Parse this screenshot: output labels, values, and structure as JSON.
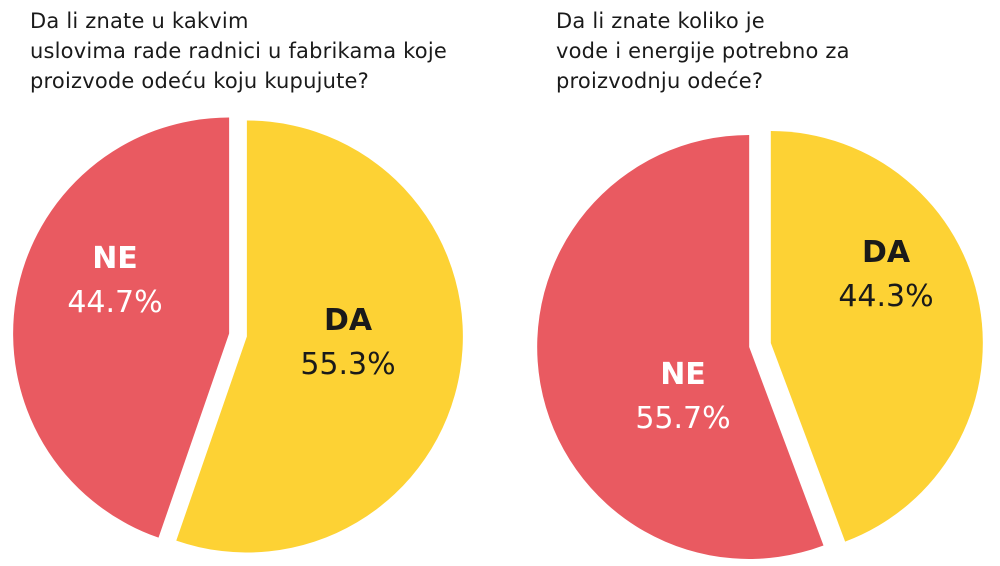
{
  "colors": {
    "DA": "#fdd234",
    "NE": "#e95a61"
  },
  "chart_data": [
    {
      "type": "pie",
      "title": "Da li znate u kakvim\nuslovima rade radnici u fabrikama koje\nproizvode odeću koju kupujute?",
      "slices": [
        {
          "name": "DA",
          "value": 55.3,
          "label": "55.3%"
        },
        {
          "name": "NE",
          "value": 44.7,
          "label": "44.7%"
        }
      ]
    },
    {
      "type": "pie",
      "title": "Da li znate koliko je\nvode i energije potrebno za\nproizvodnju odeće?",
      "slices": [
        {
          "name": "DA",
          "value": 44.3,
          "label": "44.3%"
        },
        {
          "name": "NE",
          "value": 55.7,
          "label": "55.7%"
        }
      ]
    }
  ]
}
